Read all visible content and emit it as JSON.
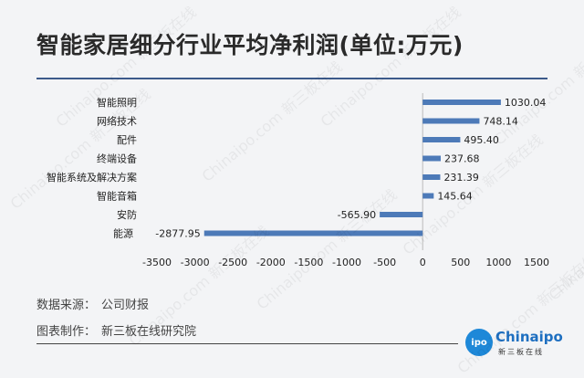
{
  "title": "智能家居细分行业平均净利润(单位:万元)",
  "footer": {
    "source_label": "数据来源：",
    "source_value": "公司财报",
    "maker_label": "图表制作：",
    "maker_value": "新三板在线研究院"
  },
  "logo": {
    "circle_text": "ipo",
    "name": "Chinaipo",
    "sub": "新三板在线"
  },
  "watermark_text": "Chinaipo.com 新三板在线",
  "colors": {
    "bar": "#4d7ab8",
    "rule": "#3c5a8a"
  },
  "chart_data": {
    "type": "bar",
    "orientation": "horizontal",
    "categories": [
      "智能照明",
      "网络技术",
      "配件",
      "终端设备",
      "智能系统及解决方案",
      "智能音箱",
      "安防",
      "能源"
    ],
    "values": [
      1030.04,
      748.14,
      495.4,
      237.68,
      231.39,
      145.64,
      -565.9,
      -2877.95
    ],
    "value_labels": [
      "1030.04",
      "748.14",
      "495.40",
      "237.68",
      "231.39",
      "145.64",
      "-565.90",
      "-2877.95"
    ],
    "xlim": [
      -3500,
      1500
    ],
    "xticks": [
      -3500,
      -3000,
      -2500,
      -2000,
      -1500,
      -1000,
      -500,
      0,
      500,
      1000,
      1500
    ],
    "grid": false
  }
}
